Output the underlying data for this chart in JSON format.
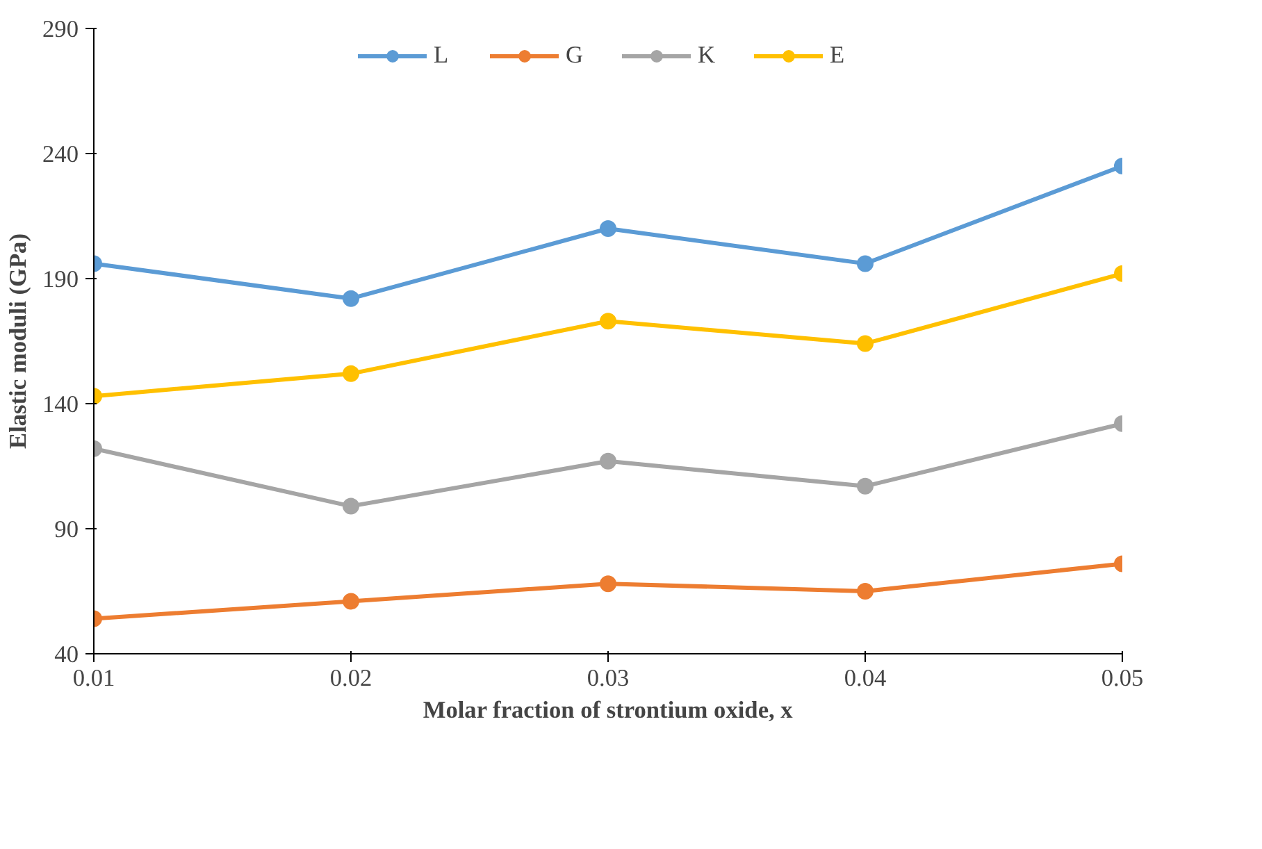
{
  "chart_data": {
    "type": "line",
    "xlabel": "Molar fraction of strontium oxide, x",
    "ylabel": "Elastic moduli (GPa)",
    "x": [
      0.01,
      0.02,
      0.03,
      0.04,
      0.05
    ],
    "xlim": [
      0.01,
      0.05
    ],
    "xticks": [
      {
        "value": 0.01,
        "label": "0.01"
      },
      {
        "value": 0.02,
        "label": "0.02"
      },
      {
        "value": 0.03,
        "label": "0.03"
      },
      {
        "value": 0.04,
        "label": "0.04"
      },
      {
        "value": 0.05,
        "label": "0.05"
      }
    ],
    "ylim": [
      40,
      290
    ],
    "yticks": [
      40,
      90,
      140,
      190,
      240,
      290
    ],
    "grid": false,
    "legend": "top",
    "marker": "circle",
    "line_style": "solid",
    "series": [
      {
        "name": "L",
        "color": "#5b9bd5",
        "values": [
          196,
          182,
          210,
          196,
          235
        ]
      },
      {
        "name": "G",
        "color": "#ed7d31",
        "values": [
          54,
          61,
          68,
          65,
          76
        ]
      },
      {
        "name": "K",
        "color": "#a5a5a5",
        "values": [
          122,
          99,
          117,
          107,
          132
        ]
      },
      {
        "name": "E",
        "color": "#ffc000",
        "values": [
          143,
          152,
          173,
          164,
          192
        ]
      }
    ]
  }
}
